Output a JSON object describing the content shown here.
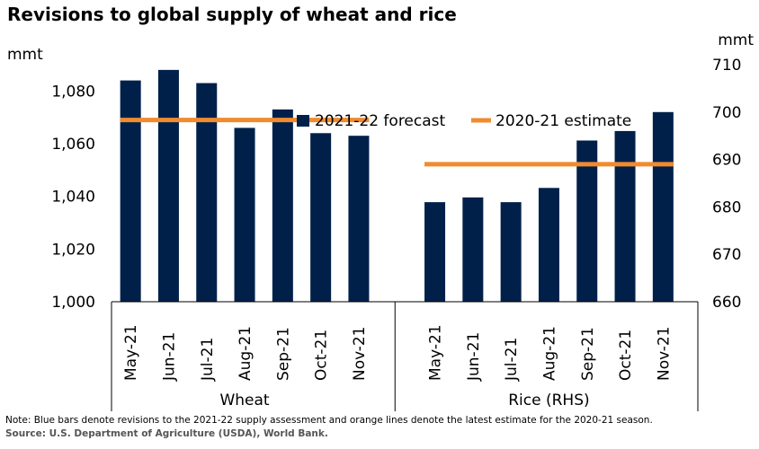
{
  "chart_data": {
    "type": "bar",
    "title": "Revisions to global supply of wheat and rice",
    "left_axis": {
      "unit": "mmt",
      "ylim": [
        1000,
        1090
      ],
      "ticks": [
        "1,000",
        "1,020",
        "1,040",
        "1,060",
        "1,080"
      ],
      "tick_values": [
        1000,
        1020,
        1040,
        1060,
        1080
      ]
    },
    "right_axis": {
      "unit": "mmt",
      "ylim": [
        660,
        710
      ],
      "ticks": [
        "660",
        "670",
        "680",
        "690",
        "700",
        "710"
      ],
      "tick_values": [
        660,
        670,
        680,
        690,
        700,
        710
      ]
    },
    "legend": {
      "placement": "top-center",
      "bar_label": "2021-22 forecast",
      "line_label": "2020-21 estimate"
    },
    "groups": [
      {
        "name": "Wheat",
        "axis": "left",
        "categories": [
          "May-21",
          "Jun-21",
          "Jul-21",
          "Aug-21",
          "Sep-21",
          "Oct-21",
          "Nov-21"
        ],
        "values": [
          1084,
          1088,
          1083,
          1066,
          1073,
          1064,
          1063
        ],
        "estimate": 1069
      },
      {
        "name": "Rice (RHS)",
        "axis": "right",
        "categories": [
          "May-21",
          "Jun-21",
          "Jul-21",
          "Aug-21",
          "Sep-21",
          "Oct-21",
          "Nov-21"
        ],
        "values": [
          681,
          682,
          681,
          684,
          694,
          696,
          700
        ],
        "estimate": 689
      }
    ],
    "colors": {
      "bar": "#00204a",
      "line": "#f08b2e"
    }
  },
  "footer": {
    "note": "Note: Blue bars denote revisions to the 2021-22 supply assessment and orange lines denote the latest estimate for the 2020-21 season.",
    "source": "Source: U.S. Department of Agriculture (USDA), World Bank."
  }
}
